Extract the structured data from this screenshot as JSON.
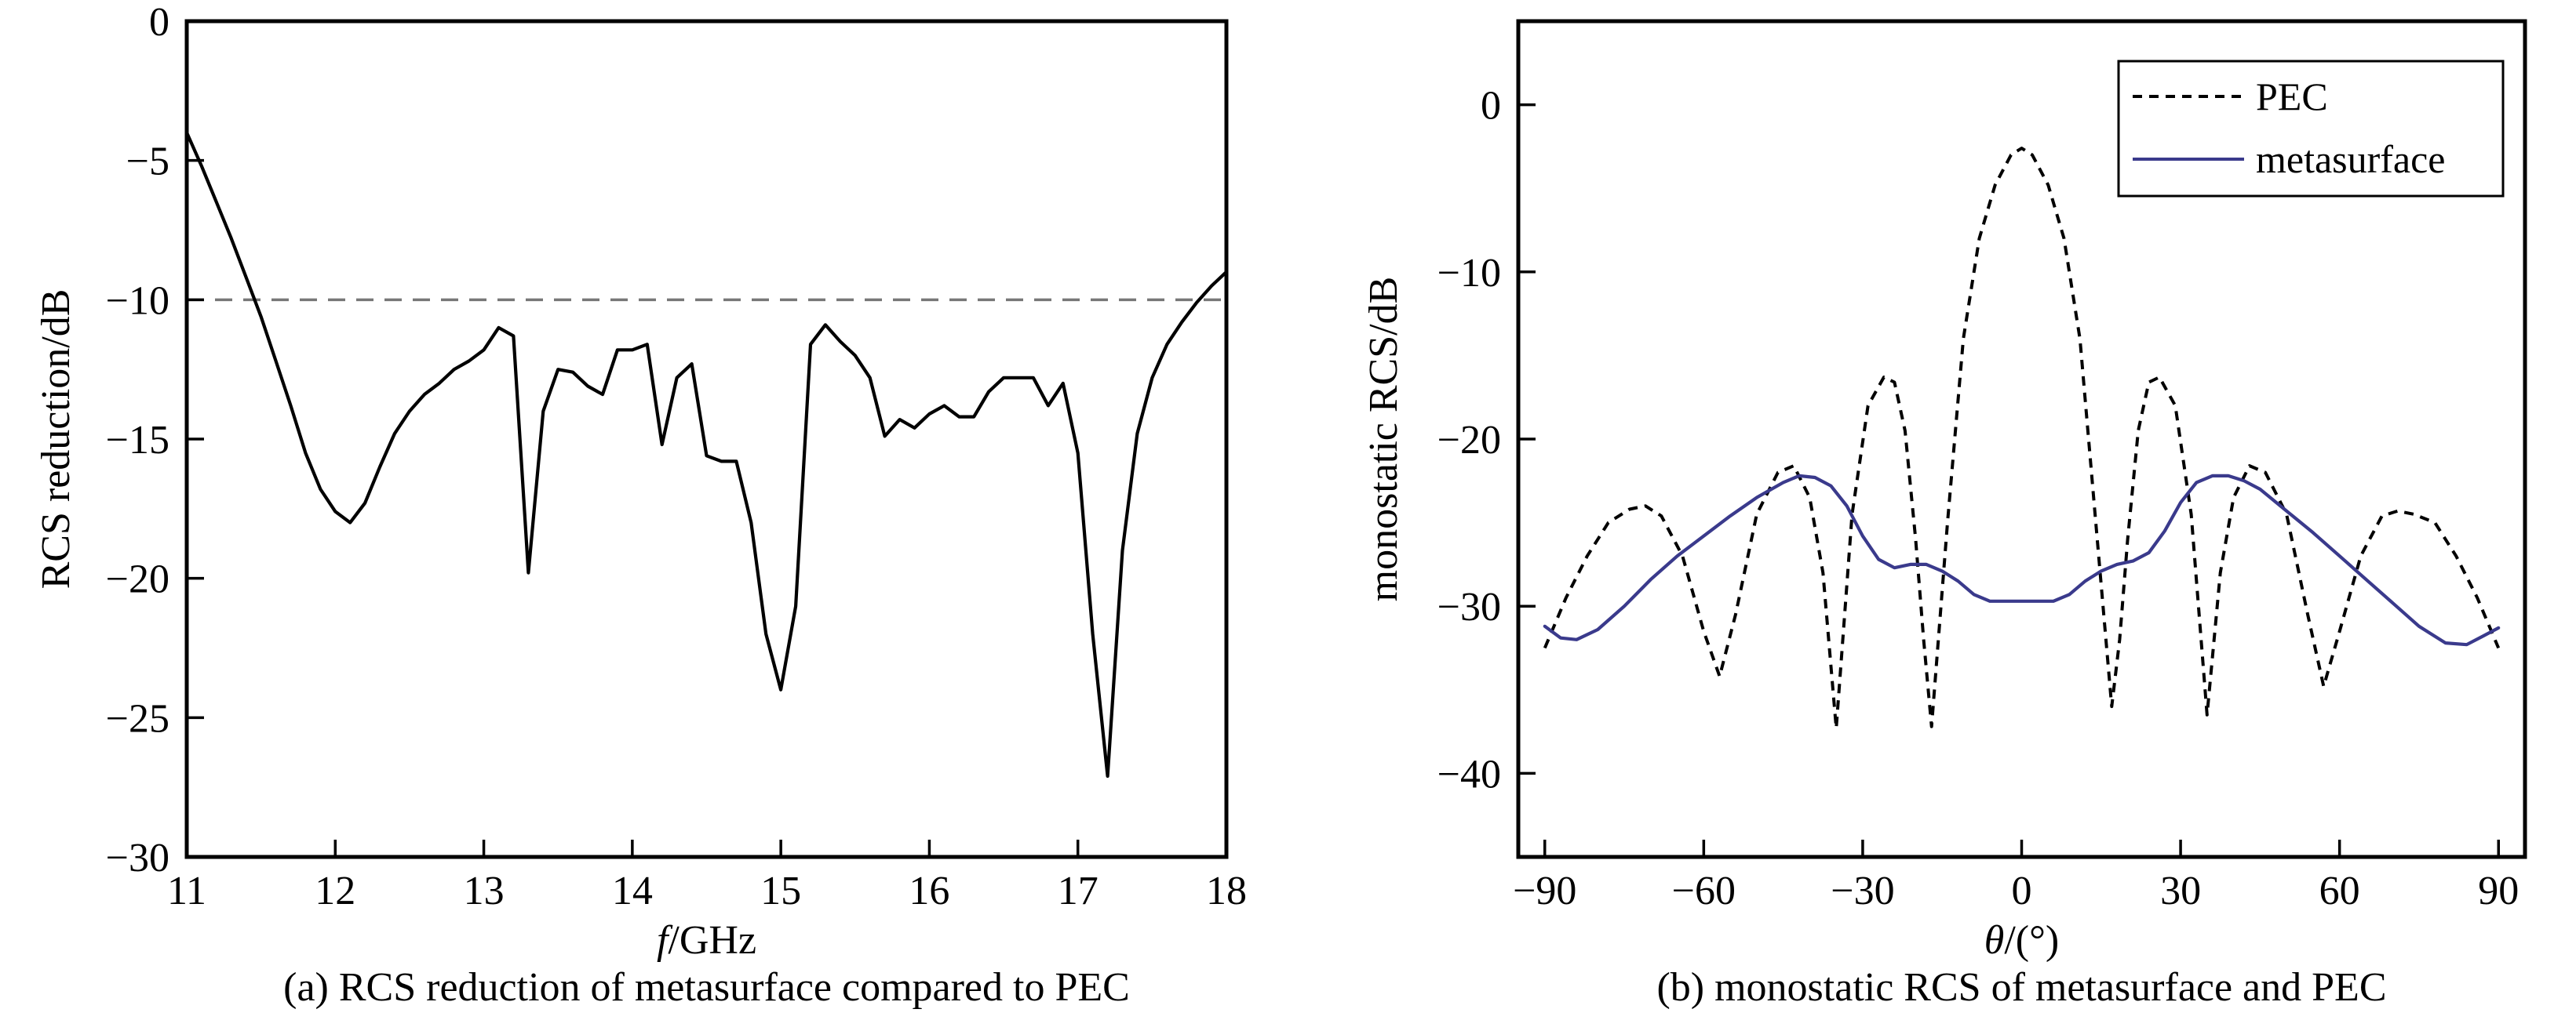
{
  "chart_data": [
    {
      "type": "line",
      "caption": "(a) RCS reduction of metasurface compared to PEC",
      "xlabel_italic": "f",
      "xlabel_rest": "/GHz",
      "ylabel": "RCS reduction/dB",
      "xlim": [
        11,
        18
      ],
      "ylim": [
        -30,
        0
      ],
      "xticks": [
        11,
        12,
        13,
        14,
        15,
        16,
        17,
        18
      ],
      "xtick_labels": [
        "11",
        "12",
        "13",
        "14",
        "15",
        "16",
        "17",
        "18"
      ],
      "yticks": [
        0,
        -5,
        -10,
        -15,
        -20,
        -25,
        -30
      ],
      "ytick_labels": [
        "0",
        "−5",
        "−10",
        "−15",
        "−20",
        "−25",
        "−30"
      ],
      "reference_line": {
        "y": -10,
        "style": "dashed",
        "color": "#777777"
      },
      "series": [
        {
          "color": "#000000",
          "style": "solid",
          "x": [
            11.0,
            11.1,
            11.2,
            11.3,
            11.4,
            11.5,
            11.6,
            11.7,
            11.8,
            11.9,
            12.0,
            12.1,
            12.2,
            12.3,
            12.4,
            12.5,
            12.6,
            12.7,
            12.8,
            12.9,
            13.0,
            13.1,
            13.2,
            13.3,
            13.4,
            13.5,
            13.6,
            13.7,
            13.8,
            13.9,
            14.0,
            14.1,
            14.2,
            14.3,
            14.4,
            14.5,
            14.6,
            14.7,
            14.8,
            14.9,
            15.0,
            15.1,
            15.2,
            15.3,
            15.4,
            15.5,
            15.6,
            15.7,
            15.8,
            15.9,
            16.0,
            16.1,
            16.2,
            16.3,
            16.4,
            16.5,
            16.6,
            16.7,
            16.8,
            16.9,
            17.0,
            17.1,
            17.2,
            17.3,
            17.4,
            17.5,
            17.6,
            17.7,
            17.8,
            17.9,
            18.0
          ],
          "y": [
            -4.0,
            -5.2,
            -6.5,
            -7.8,
            -9.2,
            -10.6,
            -12.2,
            -13.8,
            -15.5,
            -16.8,
            -17.6,
            -18.0,
            -17.3,
            -16.0,
            -14.8,
            -14.0,
            -13.4,
            -13.0,
            -12.5,
            -12.2,
            -11.8,
            -11.0,
            -11.3,
            -19.8,
            -14.0,
            -12.5,
            -12.6,
            -13.1,
            -13.4,
            -11.8,
            -11.8,
            -11.6,
            -15.2,
            -12.8,
            -12.3,
            -15.6,
            -15.8,
            -15.8,
            -18.0,
            -22.0,
            -24.0,
            -21.0,
            -11.6,
            -10.9,
            -11.5,
            -12.0,
            -12.8,
            -14.9,
            -14.3,
            -14.6,
            -14.1,
            -13.8,
            -14.2,
            -14.2,
            -13.3,
            -12.8,
            -12.8,
            -12.8,
            -13.8,
            -13.0,
            -15.5,
            -22.0,
            -27.1,
            -19.0,
            -14.8,
            -12.8,
            -11.6,
            -10.8,
            -10.1,
            -9.5,
            -9.0
          ]
        }
      ]
    },
    {
      "type": "line",
      "caption": "(b) monostatic RCS of metasurface and PEC",
      "xlabel_italic": "θ",
      "xlabel_rest": "/(°)",
      "ylabel": "monostatic RCS/dB",
      "xlim": [
        -95,
        95
      ],
      "ylim": [
        -45,
        5
      ],
      "xticks": [
        -90,
        -60,
        -30,
        0,
        30,
        60,
        90
      ],
      "xtick_labels": [
        "−90",
        "−60",
        "−30",
        "0",
        "30",
        "60",
        "90"
      ],
      "yticks": [
        0,
        -10,
        -20,
        -30,
        -40
      ],
      "ytick_labels": [
        "0",
        "−10",
        "−20",
        "−30",
        "−40"
      ],
      "legend": {
        "placement": "top-right"
      },
      "series": [
        {
          "name": "PEC",
          "color": "#000000",
          "style": "dashed",
          "x": [
            -90,
            -86,
            -82,
            -78,
            -74,
            -71,
            -68,
            -64,
            -60,
            -57,
            -54,
            -50,
            -46,
            -43,
            -40,
            -37.5,
            -35,
            -32,
            -29,
            -26,
            -24,
            -22,
            -20,
            -18.5,
            -17,
            -14,
            -11,
            -8,
            -5,
            -2,
            0,
            2,
            5,
            8,
            11,
            14,
            17,
            18.5,
            20,
            22,
            24,
            26,
            29,
            32,
            35,
            37.5,
            40,
            43,
            46,
            50,
            54,
            57,
            60,
            64,
            68,
            71,
            74,
            78,
            82,
            86,
            90
          ],
          "y": [
            -32.5,
            -29.5,
            -27.0,
            -25.0,
            -24.2,
            -24.0,
            -24.6,
            -27.0,
            -31.5,
            -34.2,
            -30.5,
            -24.5,
            -22.0,
            -21.6,
            -23.5,
            -28.0,
            -37.3,
            -24.5,
            -18.0,
            -16.3,
            -16.6,
            -19.5,
            -26.0,
            -32.0,
            -37.2,
            -25.0,
            -14.0,
            -8.0,
            -4.8,
            -3.0,
            -2.6,
            -3.0,
            -4.8,
            -8.0,
            -14.0,
            -25.0,
            -36.0,
            -32.0,
            -26.0,
            -19.5,
            -16.6,
            -16.3,
            -18.0,
            -24.5,
            -36.5,
            -28.0,
            -23.5,
            -21.6,
            -22.0,
            -24.5,
            -30.5,
            -34.8,
            -31.5,
            -27.0,
            -24.6,
            -24.3,
            -24.5,
            -25.0,
            -27.0,
            -29.5,
            -32.5
          ]
        },
        {
          "name": "metasurface",
          "color": "#3a3a8c",
          "style": "solid",
          "x": [
            -90,
            -87,
            -84,
            -80,
            -75,
            -70,
            -65,
            -60,
            -55,
            -50,
            -45,
            -42,
            -39,
            -36,
            -33,
            -30,
            -27,
            -24,
            -21,
            -18,
            -15,
            -12,
            -9,
            -6,
            -3,
            0,
            3,
            6,
            9,
            12,
            15,
            18,
            21,
            24,
            27,
            30,
            33,
            36,
            39,
            42,
            45,
            50,
            55,
            60,
            65,
            70,
            75,
            80,
            84,
            87,
            90
          ],
          "y": [
            -31.2,
            -31.9,
            -32.0,
            -31.4,
            -30.0,
            -28.4,
            -27.0,
            -25.8,
            -24.6,
            -23.5,
            -22.6,
            -22.2,
            -22.3,
            -22.8,
            -24.0,
            -25.8,
            -27.2,
            -27.7,
            -27.5,
            -27.5,
            -27.9,
            -28.5,
            -29.3,
            -29.7,
            -29.7,
            -29.7,
            -29.7,
            -29.7,
            -29.3,
            -28.5,
            -27.9,
            -27.5,
            -27.3,
            -26.8,
            -25.5,
            -23.8,
            -22.6,
            -22.2,
            -22.2,
            -22.5,
            -23.0,
            -24.3,
            -25.6,
            -27.0,
            -28.4,
            -29.8,
            -31.2,
            -32.2,
            -32.3,
            -31.8,
            -31.3
          ]
        }
      ]
    }
  ]
}
